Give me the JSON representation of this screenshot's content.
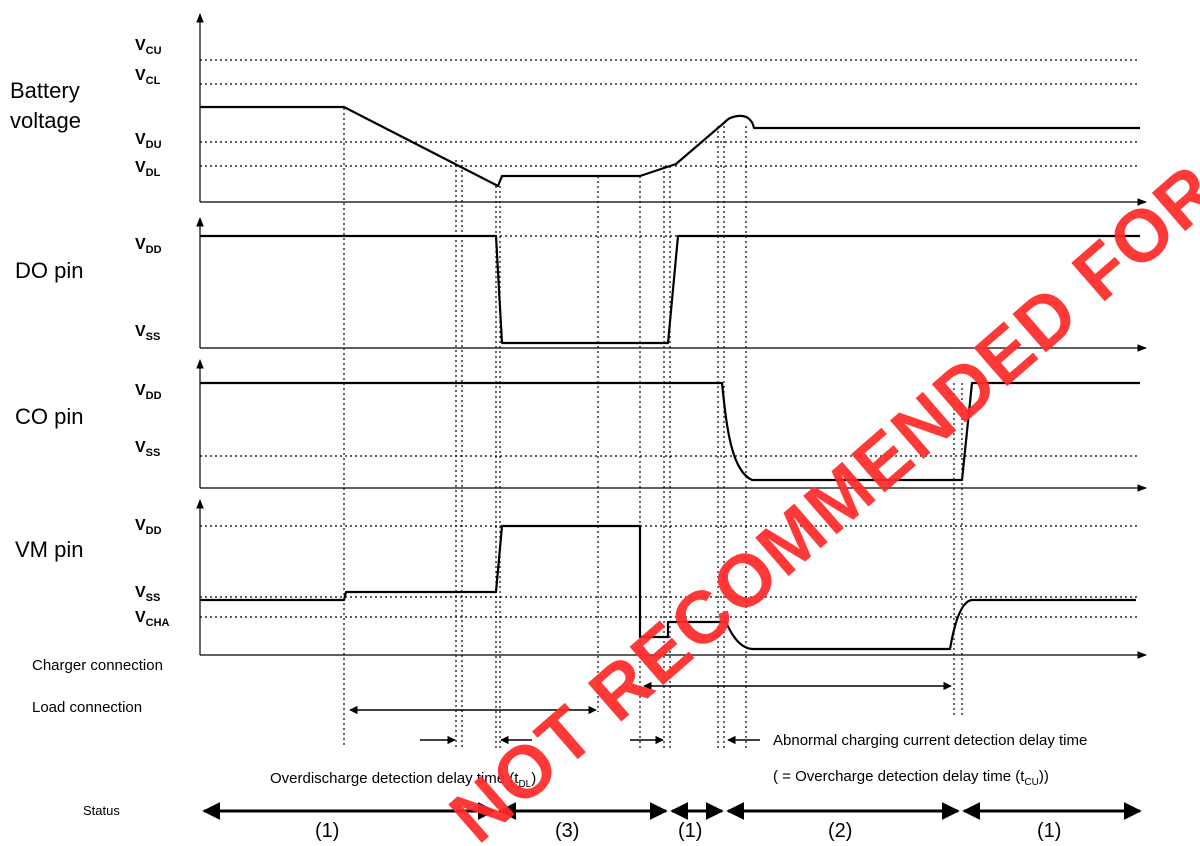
{
  "signals": {
    "battery": {
      "label_line1": "Battery",
      "label_line2": "voltage",
      "levels": [
        {
          "main": "V",
          "sub": "CU"
        },
        {
          "main": "V",
          "sub": "CL"
        },
        {
          "main": "V",
          "sub": "DU"
        },
        {
          "main": "V",
          "sub": "DL"
        }
      ]
    },
    "do_pin": {
      "label": "DO pin",
      "levels": [
        {
          "main": "V",
          "sub": "DD"
        },
        {
          "main": "V",
          "sub": "SS"
        }
      ]
    },
    "co_pin": {
      "label": "CO pin",
      "levels": [
        {
          "main": "V",
          "sub": "DD"
        },
        {
          "main": "V",
          "sub": "SS"
        }
      ]
    },
    "vm_pin": {
      "label": "VM pin",
      "levels": [
        {
          "main": "V",
          "sub": "DD"
        },
        {
          "main": "V",
          "sub": "SS"
        },
        {
          "main": "V",
          "sub": "CHA"
        }
      ]
    }
  },
  "connections": {
    "charger": "Charger connection",
    "load": "Load connection"
  },
  "annotations": {
    "overdischarge": {
      "text": "Overdischarge detection delay time (t",
      "sub": "DL",
      "close": ")"
    },
    "abnormal_line1": "Abnormal charging current detection delay time",
    "abnormal_line2": {
      "text": "( = Overcharge detection delay time (t",
      "sub": "CU",
      "close": "))"
    }
  },
  "status": {
    "label": "Status",
    "segments": [
      "(1)",
      "(3)",
      "(1)",
      "(2)",
      "(1)"
    ]
  },
  "watermark": "NOT RECOMMENDED FOR NEW DESIGN",
  "colors": {
    "watermark": "#ff2a2a",
    "line": "#000000"
  }
}
